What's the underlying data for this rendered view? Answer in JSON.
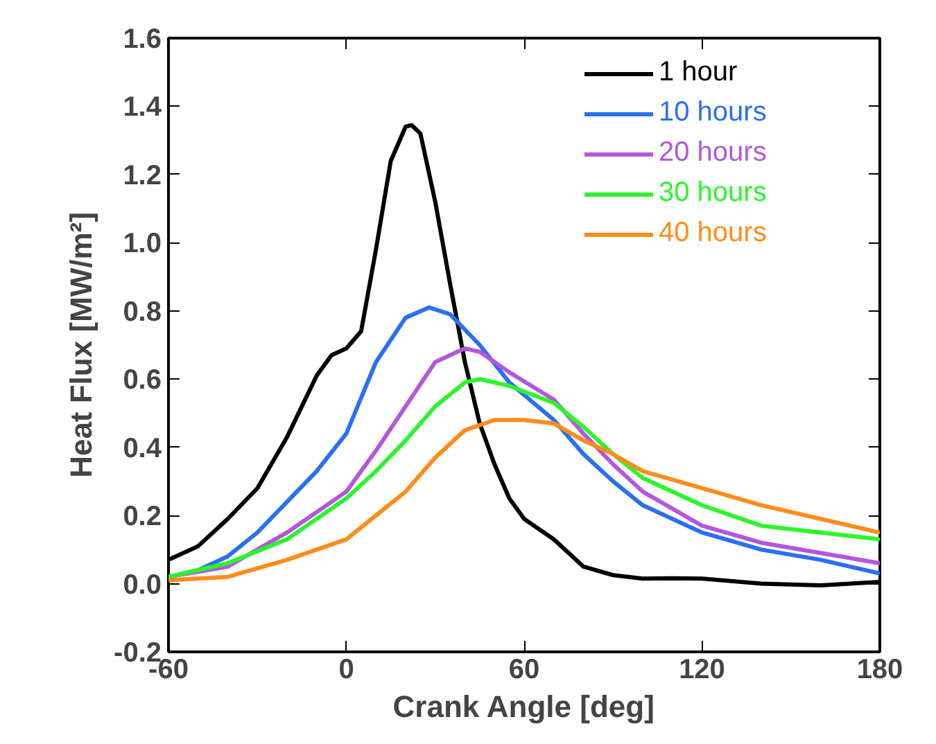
{
  "chart_data": {
    "type": "line",
    "xlabel": "Crank Angle [deg]",
    "ylabel": "Heat Flux [MW/m²]",
    "xlim": [
      -60,
      180
    ],
    "xticks": [
      -60,
      0,
      60,
      120,
      180
    ],
    "ylim": [
      -0.2,
      1.6
    ],
    "yticks": [
      -0.2,
      {
        "value": 0,
        "label": "0.0"
      },
      0.2,
      0.4,
      0.6,
      0.8,
      {
        "value": 1,
        "label": "1.0"
      },
      1.2,
      1.4,
      1.6
    ],
    "grid": false,
    "legend": "top right",
    "marker": "none",
    "line_style": "solid",
    "series": [
      {
        "name": "1 hour",
        "color": "#000000",
        "x": [
          -60,
          -50,
          -40,
          -30,
          -20,
          -10,
          -5,
          0,
          5,
          10,
          15,
          20,
          22,
          25,
          30,
          35,
          40,
          45,
          50,
          55,
          60,
          70,
          80,
          90,
          100,
          110,
          120,
          140,
          160,
          180
        ],
        "values": [
          0.07,
          0.11,
          0.19,
          0.28,
          0.43,
          0.61,
          0.67,
          0.69,
          0.74,
          0.98,
          1.24,
          1.34,
          1.345,
          1.32,
          1.12,
          0.88,
          0.65,
          0.47,
          0.35,
          0.25,
          0.19,
          0.13,
          0.05,
          0.025,
          0.015,
          0.016,
          0.015,
          0.0,
          -0.005,
          0.005
        ]
      },
      {
        "name": "10 hours",
        "color": "#2a6ff5",
        "x": [
          -60,
          -50,
          -40,
          -30,
          -20,
          -10,
          0,
          10,
          20,
          28,
          35,
          45,
          55,
          70,
          80,
          90,
          100,
          120,
          140,
          160,
          180
        ],
        "values": [
          0.02,
          0.04,
          0.08,
          0.15,
          0.24,
          0.33,
          0.44,
          0.65,
          0.78,
          0.81,
          0.79,
          0.7,
          0.59,
          0.48,
          0.38,
          0.3,
          0.23,
          0.15,
          0.1,
          0.07,
          0.03
        ]
      },
      {
        "name": "20 hours",
        "color": "#b556db",
        "x": [
          -60,
          -40,
          -20,
          -10,
          0,
          10,
          20,
          30,
          40,
          45,
          55,
          70,
          80,
          90,
          100,
          120,
          140,
          160,
          180
        ],
        "values": [
          0.02,
          0.05,
          0.15,
          0.21,
          0.27,
          0.39,
          0.52,
          0.65,
          0.69,
          0.68,
          0.62,
          0.54,
          0.44,
          0.35,
          0.27,
          0.17,
          0.12,
          0.09,
          0.06
        ]
      },
      {
        "name": "30 hours",
        "color": "#2cf52c",
        "x": [
          -60,
          -40,
          -20,
          -10,
          0,
          10,
          20,
          30,
          40,
          45,
          55,
          70,
          80,
          90,
          100,
          120,
          140,
          160,
          180
        ],
        "values": [
          0.02,
          0.06,
          0.13,
          0.19,
          0.25,
          0.33,
          0.42,
          0.52,
          0.59,
          0.6,
          0.58,
          0.53,
          0.46,
          0.38,
          0.31,
          0.23,
          0.17,
          0.15,
          0.13
        ]
      },
      {
        "name": "40 hours",
        "color": "#ff8c1a",
        "x": [
          -60,
          -40,
          -20,
          0,
          10,
          20,
          30,
          40,
          50,
          60,
          70,
          80,
          90,
          100,
          120,
          140,
          160,
          180
        ],
        "values": [
          0.01,
          0.02,
          0.07,
          0.13,
          0.2,
          0.27,
          0.37,
          0.45,
          0.48,
          0.48,
          0.47,
          0.42,
          0.38,
          0.33,
          0.28,
          0.23,
          0.19,
          0.15
        ]
      }
    ]
  }
}
